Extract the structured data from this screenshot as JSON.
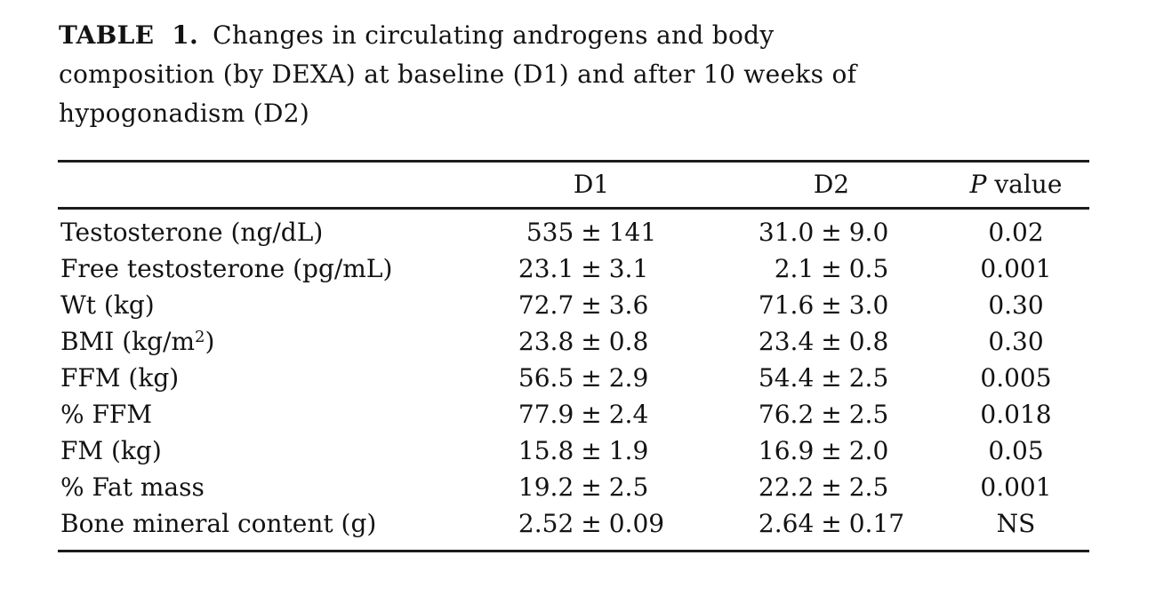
{
  "caption": {
    "label": "TABLE 1.",
    "line1_rest": "Changes in circulating androgens and body",
    "line2": "composition (by DEXA) at baseline (D1) and after 10 weeks of",
    "line3": "hypogonadism (D2)"
  },
  "table": {
    "pm": "±",
    "header": {
      "d1": "D1",
      "d2": "D2",
      "p_italic": "P",
      "p_rest": " value"
    },
    "rows": [
      {
        "label": "Testosterone (ng/dL)",
        "d1v": "535",
        "d1e": "141",
        "d2v": "31.0",
        "d2e": "9.0",
        "p": "0.02"
      },
      {
        "label": "Free testosterone (pg/mL)",
        "d1v": "23.1",
        "d1e": "3.1",
        "d2v": "2.1",
        "d2e": "0.5",
        "p": "0.001"
      },
      {
        "label": "Wt (kg)",
        "d1v": "72.7",
        "d1e": "3.6",
        "d2v": "71.6",
        "d2e": "3.0",
        "p": "0.30"
      },
      {
        "label": "BMI (kg/m",
        "label_sup": "2",
        "label_after": ")",
        "d1v": "23.8",
        "d1e": "0.8",
        "d2v": "23.4",
        "d2e": "0.8",
        "p": "0.30"
      },
      {
        "label": "FFM (kg)",
        "d1v": "56.5",
        "d1e": "2.9",
        "d2v": "54.4",
        "d2e": "2.5",
        "p": "0.005"
      },
      {
        "label": "% FFM",
        "d1v": "77.9",
        "d1e": "2.4",
        "d2v": "76.2",
        "d2e": "2.5",
        "p": "0.018"
      },
      {
        "label": "FM (kg)",
        "d1v": "15.8",
        "d1e": "1.9",
        "d2v": "16.9",
        "d2e": "2.0",
        "p": "0.05"
      },
      {
        "label": "% Fat mass",
        "d1v": "19.2",
        "d1e": "2.5",
        "d2v": "22.2",
        "d2e": "2.5",
        "p": "0.001"
      },
      {
        "label": "Bone mineral content (g)",
        "d1v": "2.52",
        "d1e": "0.09",
        "d2v": "2.64",
        "d2e": "0.17",
        "p": "NS"
      }
    ]
  },
  "colors": {
    "text": "#131313",
    "rule": "#1c1c1c",
    "background": "#ffffff"
  }
}
